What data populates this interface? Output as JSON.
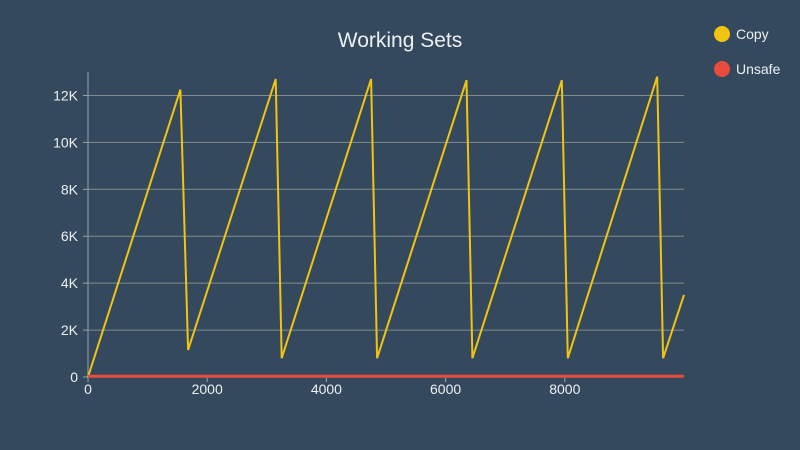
{
  "chart_data": {
    "type": "line",
    "title": "Working Sets",
    "xlabel": "",
    "ylabel": "",
    "xlim": [
      0,
      10000
    ],
    "ylim": [
      0,
      13000
    ],
    "x_ticks": [
      0,
      2000,
      4000,
      6000,
      8000
    ],
    "x_tick_labels": [
      "0",
      "2000",
      "4000",
      "6000",
      "8000"
    ],
    "y_ticks": [
      0,
      2000,
      4000,
      6000,
      8000,
      10000,
      12000
    ],
    "y_tick_labels": [
      "0",
      "2K",
      "4K",
      "6K",
      "8K",
      "10K",
      "12K"
    ],
    "grid": "horizontal",
    "legend_position": "right",
    "series": [
      {
        "name": "Copy",
        "color": "#f1c40f",
        "points": [
          [
            0,
            0
          ],
          [
            1550,
            12250
          ],
          [
            1680,
            1150
          ],
          [
            3150,
            12700
          ],
          [
            3250,
            800
          ],
          [
            4750,
            12700
          ],
          [
            4850,
            800
          ],
          [
            6350,
            12650
          ],
          [
            6450,
            800
          ],
          [
            7950,
            12650
          ],
          [
            8050,
            800
          ],
          [
            9550,
            12800
          ],
          [
            9650,
            800
          ],
          [
            10000,
            3500
          ]
        ]
      },
      {
        "name": "Unsafe",
        "color": "#e74c3c",
        "points": [
          [
            0,
            30
          ],
          [
            10000,
            30
          ]
        ]
      }
    ]
  },
  "colors": {
    "background": "#34495e",
    "grid": "#7f8c8d",
    "axis": "#95a5a6",
    "text": "#ecf0f1"
  }
}
